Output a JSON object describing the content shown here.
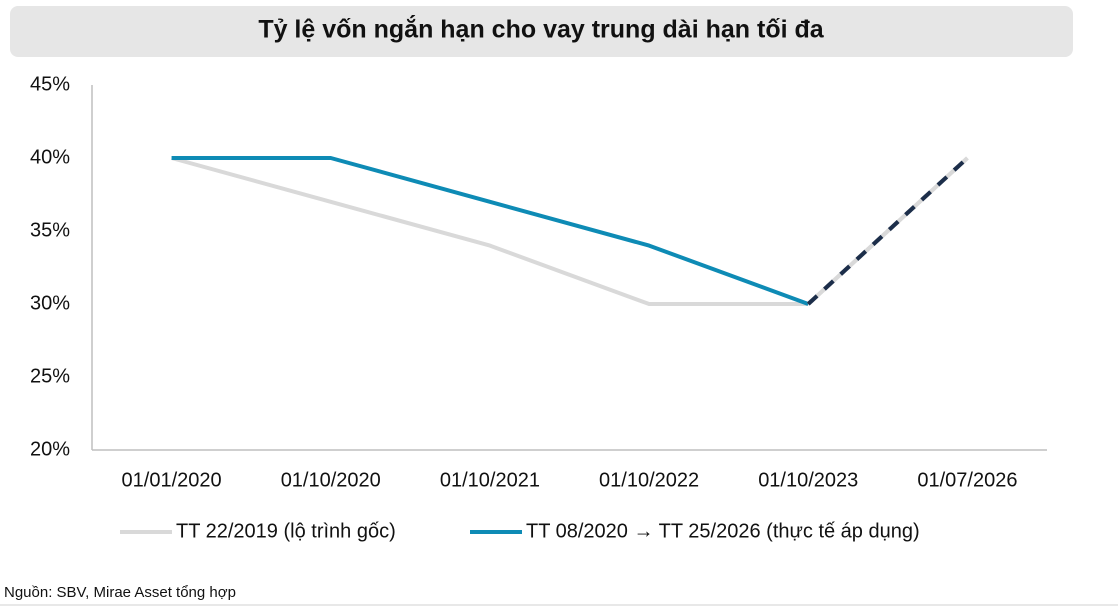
{
  "chart_data": {
    "type": "line",
    "title": "Tỷ lệ vốn ngắn hạn cho vay trung dài hạn tối đa",
    "categories": [
      "01/01/2020",
      "01/10/2020",
      "01/10/2021",
      "01/10/2022",
      "01/10/2023",
      "01/07/2026"
    ],
    "series": [
      {
        "name": "TT 22/2019 (lộ trình gốc)",
        "color": "#d9d9d9",
        "values": [
          40,
          37,
          34,
          30,
          30,
          40
        ]
      },
      {
        "name": "TT 08/2020 → TT 25/2026 (thực tế áp dụng)",
        "color": "#0e8bb5",
        "values": [
          40,
          40,
          37,
          34,
          30,
          40
        ]
      }
    ],
    "dashed_from_index": 4,
    "dash_color": "#1c2e4a",
    "ylim": [
      20,
      45
    ],
    "yticks": [
      {
        "value": 20,
        "label": "20%"
      },
      {
        "value": 25,
        "label": "25%"
      },
      {
        "value": 30,
        "label": "30%"
      },
      {
        "value": 35,
        "label": "35%"
      },
      {
        "value": 40,
        "label": "40%"
      },
      {
        "value": 45,
        "label": "45%"
      }
    ],
    "grid": false,
    "source": "Nguồn: SBV, Mirae Asset tổng hợp"
  }
}
